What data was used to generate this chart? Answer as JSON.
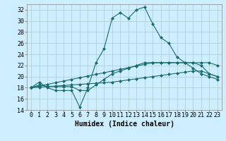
{
  "xlabel": "Humidex (Indice chaleur)",
  "background_color": "#cceeff",
  "grid_color": "#aacccc",
  "line_color": "#1a6b6b",
  "xlim": [
    -0.5,
    23.5
  ],
  "ylim": [
    14,
    33
  ],
  "yticks": [
    14,
    16,
    18,
    20,
    22,
    24,
    26,
    28,
    30,
    32
  ],
  "xticks": [
    0,
    1,
    2,
    3,
    4,
    5,
    6,
    7,
    8,
    9,
    10,
    11,
    12,
    13,
    14,
    15,
    16,
    17,
    18,
    19,
    20,
    21,
    22,
    23
  ],
  "series": [
    [
      18.0,
      19.0,
      18.0,
      17.5,
      17.5,
      17.5,
      14.5,
      18.0,
      22.5,
      25.0,
      30.5,
      31.5,
      30.5,
      32.0,
      32.5,
      29.5,
      27.0,
      26.0,
      23.5,
      22.5,
      21.5,
      20.5,
      20.0,
      19.5
    ],
    [
      18.0,
      18.5,
      18.2,
      18.2,
      18.2,
      18.2,
      17.5,
      17.5,
      18.5,
      19.5,
      20.5,
      21.0,
      21.5,
      22.0,
      22.5,
      22.5,
      22.5,
      22.5,
      22.5,
      22.5,
      22.5,
      22.0,
      20.5,
      20.0
    ],
    [
      18.0,
      18.3,
      18.6,
      18.9,
      19.2,
      19.5,
      19.8,
      20.1,
      20.4,
      20.7,
      21.0,
      21.3,
      21.6,
      21.9,
      22.2,
      22.5,
      22.5,
      22.5,
      22.5,
      22.5,
      22.5,
      22.5,
      22.5,
      22.0
    ],
    [
      18.0,
      18.1,
      18.2,
      18.3,
      18.4,
      18.5,
      18.6,
      18.7,
      18.8,
      18.9,
      19.0,
      19.2,
      19.4,
      19.6,
      19.8,
      20.0,
      20.2,
      20.4,
      20.6,
      20.8,
      21.0,
      21.0,
      20.5,
      20.0
    ]
  ],
  "font_family": "monospace",
  "fontsize_xlabel": 7,
  "fontsize_ticks": 6,
  "linewidth": 0.8,
  "markersize": 2.0
}
